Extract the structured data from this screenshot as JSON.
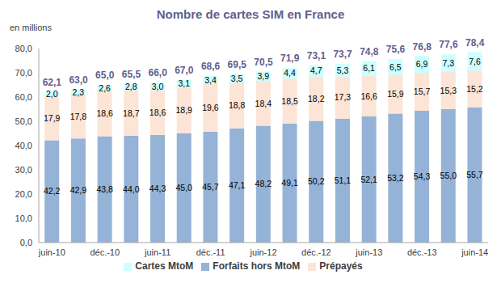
{
  "chart_data": {
    "type": "bar",
    "title": "Nombre de cartes SIM en France",
    "y_label": "en millions",
    "categories": [
      "juin-10",
      null,
      "déc.-10",
      null,
      "juin-11",
      null,
      "déc.-11",
      null,
      "juin-12",
      null,
      "déc.-12",
      null,
      "juin-13",
      null,
      "déc.-13",
      null,
      "juin-14"
    ],
    "series": [
      {
        "name": "Forfaits hors MtoM",
        "color": "#95B3D7",
        "values": [
          42.2,
          42.9,
          43.8,
          44.0,
          44.3,
          45.0,
          45.7,
          47.1,
          48.2,
          49.1,
          50.2,
          51.1,
          52.1,
          53.2,
          54.3,
          55.0,
          55.7
        ],
        "value_labels": [
          "42,2",
          "42,9",
          "43,8",
          "44,0",
          "44,3",
          "45,0",
          "45,7",
          "47,1",
          "48,2",
          "49,1",
          "50,2",
          "51,1",
          "52,1",
          "53,2",
          "54,3",
          "55,0",
          "55,7"
        ]
      },
      {
        "name": "Prépayés",
        "color": "#FCE4D6",
        "values": [
          17.9,
          17.8,
          18.6,
          18.7,
          18.6,
          18.9,
          19.6,
          18.8,
          18.4,
          18.5,
          18.2,
          17.3,
          16.6,
          15.9,
          15.7,
          15.3,
          15.2
        ],
        "value_labels": [
          "17,9",
          "17,8",
          "18,6",
          "18,7",
          "18,6",
          "18,9",
          "19,6",
          "18,8",
          "18,4",
          "18,5",
          "18,2",
          "17,3",
          "16,6",
          "15,9",
          "15,7",
          "15,3",
          "15,2"
        ]
      },
      {
        "name": "Cartes MtoM",
        "color": "#CCFFFF",
        "values": [
          2.0,
          2.3,
          2.6,
          2.8,
          3.0,
          3.1,
          3.4,
          3.5,
          3.9,
          4.4,
          4.7,
          5.3,
          6.1,
          6.5,
          6.9,
          7.3,
          7.6
        ],
        "value_labels": [
          "2,0",
          "2,3",
          "2,6",
          "2,8",
          "3,0",
          "3,1",
          "3,4",
          "3,5",
          "3,9",
          "4,4",
          "4,7",
          "5,3",
          "6,1",
          "6,5",
          "6,9",
          "7,3",
          "7,6"
        ]
      }
    ],
    "totals": [
      62.1,
      63.0,
      65.0,
      65.5,
      66.0,
      67.0,
      68.6,
      69.5,
      70.5,
      71.9,
      73.1,
      73.7,
      74.8,
      75.6,
      76.8,
      77.6,
      78.4
    ],
    "total_labels": [
      "62,1",
      "63,0",
      "65,0",
      "65,5",
      "66,0",
      "67,0",
      "68,6",
      "69,5",
      "70,5",
      "71,9",
      "73,1",
      "73,7",
      "74,8",
      "75,6",
      "76,8",
      "77,6",
      "78,4"
    ],
    "ylim": [
      0,
      80
    ],
    "yticks": [
      {
        "value": 0,
        "label": "0,0"
      },
      {
        "value": 10,
        "label": "10,0"
      },
      {
        "value": 20,
        "label": "20,0"
      },
      {
        "value": 30,
        "label": "30,0"
      },
      {
        "value": 40,
        "label": "40,0"
      },
      {
        "value": 50,
        "label": "50,0"
      },
      {
        "value": 60,
        "label": "60,0"
      },
      {
        "value": 70,
        "label": "70,0"
      },
      {
        "value": 80,
        "label": "80,0"
      }
    ],
    "stacked": true,
    "data_labels": true,
    "legend": "bottom",
    "grid": false
  }
}
